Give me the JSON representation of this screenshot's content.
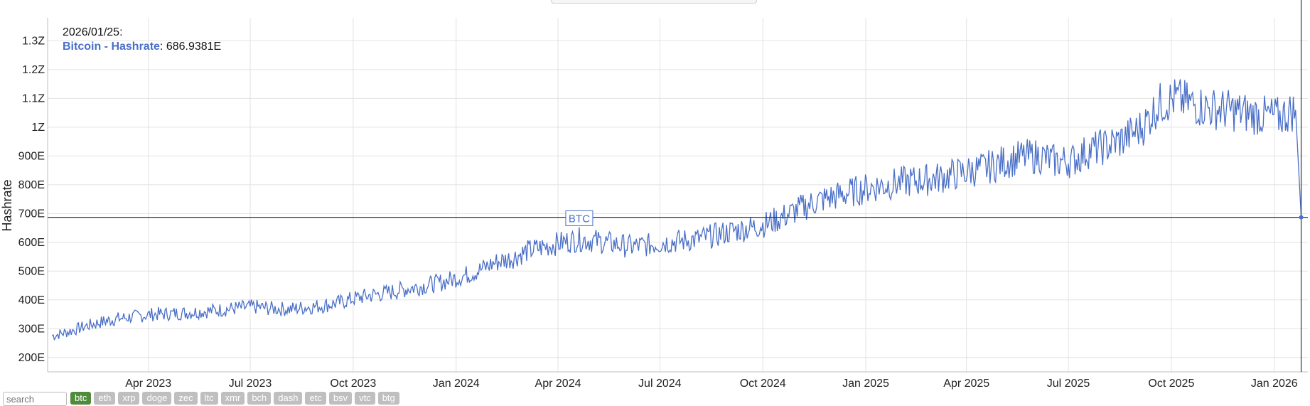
{
  "chart_data": {
    "type": "line",
    "title": "",
    "xlabel": "",
    "ylabel": "Hashrate",
    "x_range": [
      "2023-01-01",
      "2026-01-31"
    ],
    "ylim": [
      150,
      1380
    ],
    "y_unit_note": "values in E (exa); 1Z = 1000E",
    "y_ticks": [
      {
        "value": 200,
        "label": "200E"
      },
      {
        "value": 300,
        "label": "300E"
      },
      {
        "value": 400,
        "label": "400E"
      },
      {
        "value": 500,
        "label": "500E"
      },
      {
        "value": 600,
        "label": "600E"
      },
      {
        "value": 700,
        "label": "700E"
      },
      {
        "value": 800,
        "label": "800E"
      },
      {
        "value": 900,
        "label": "900E"
      },
      {
        "value": 1000,
        "label": "1Z"
      },
      {
        "value": 1100,
        "label": "1.1Z"
      },
      {
        "value": 1200,
        "label": "1.2Z"
      },
      {
        "value": 1300,
        "label": "1.3Z"
      }
    ],
    "x_ticks": [
      {
        "date": "2023-04-01",
        "label": "Apr 2023"
      },
      {
        "date": "2023-07-01",
        "label": "Jul 2023"
      },
      {
        "date": "2023-10-01",
        "label": "Oct 2023"
      },
      {
        "date": "2024-01-01",
        "label": "Jan 2024"
      },
      {
        "date": "2024-04-01",
        "label": "Apr 2024"
      },
      {
        "date": "2024-07-01",
        "label": "Jul 2024"
      },
      {
        "date": "2024-10-01",
        "label": "Oct 2024"
      },
      {
        "date": "2025-01-01",
        "label": "Jan 2025"
      },
      {
        "date": "2025-04-01",
        "label": "Apr 2025"
      },
      {
        "date": "2025-07-01",
        "label": "Jul 2025"
      },
      {
        "date": "2025-10-01",
        "label": "Oct 2025"
      },
      {
        "date": "2026-01-01",
        "label": "Jan 2026"
      }
    ],
    "grid": true,
    "legend": "none",
    "series": [
      {
        "name": "Bitcoin - Hashrate",
        "color": "#4a6fc7",
        "dates": [
          "2023-01-05",
          "2023-01-20",
          "2023-02-05",
          "2023-02-20",
          "2023-03-05",
          "2023-03-20",
          "2023-04-05",
          "2023-04-20",
          "2023-05-05",
          "2023-05-20",
          "2023-06-05",
          "2023-06-20",
          "2023-07-05",
          "2023-07-20",
          "2023-08-05",
          "2023-08-20",
          "2023-09-05",
          "2023-09-20",
          "2023-10-05",
          "2023-10-20",
          "2023-11-05",
          "2023-11-20",
          "2023-12-05",
          "2023-12-20",
          "2024-01-05",
          "2024-01-20",
          "2024-02-05",
          "2024-02-20",
          "2024-03-05",
          "2024-03-20",
          "2024-04-05",
          "2024-04-20",
          "2024-05-05",
          "2024-05-20",
          "2024-06-05",
          "2024-06-20",
          "2024-07-05",
          "2024-07-20",
          "2024-08-05",
          "2024-08-20",
          "2024-09-05",
          "2024-09-20",
          "2024-10-05",
          "2024-10-20",
          "2024-11-05",
          "2024-11-20",
          "2024-12-05",
          "2024-12-20",
          "2025-01-05",
          "2025-01-20",
          "2025-02-05",
          "2025-02-20",
          "2025-03-05",
          "2025-03-20",
          "2025-04-05",
          "2025-04-20",
          "2025-05-05",
          "2025-05-20",
          "2025-06-05",
          "2025-06-20",
          "2025-07-05",
          "2025-07-20",
          "2025-08-05",
          "2025-08-20",
          "2025-09-05",
          "2025-09-20",
          "2025-10-05",
          "2025-10-20",
          "2025-11-05",
          "2025-11-20",
          "2025-12-05",
          "2025-12-20",
          "2026-01-05",
          "2026-01-20",
          "2026-01-25"
        ],
        "values": [
          275,
          290,
          310,
          325,
          335,
          342,
          350,
          352,
          355,
          360,
          365,
          372,
          376,
          370,
          368,
          374,
          380,
          392,
          408,
          418,
          428,
          440,
          450,
          462,
          480,
          500,
          530,
          545,
          570,
          585,
          600,
          610,
          605,
          595,
          585,
          590,
          600,
          605,
          612,
          625,
          640,
          650,
          665,
          690,
          720,
          745,
          760,
          775,
          790,
          800,
          810,
          815,
          822,
          835,
          848,
          860,
          880,
          895,
          900,
          880,
          885,
          920,
          935,
          960,
          1000,
          1080,
          1100,
          1080,
          1065,
          1060,
          1050,
          1040,
          1035,
          1060,
          686.9381
        ]
      }
    ],
    "crosshair": {
      "date": "2026-01-25",
      "value": 686.9381
    },
    "tooltip": {
      "date": "2026/01/25:",
      "series_name": "Bitcoin - Hashrate",
      "value_text": ": 686.9381E"
    },
    "annotation": {
      "label": "BTC",
      "date": "2024-04-20",
      "value": 680
    }
  },
  "controls": {
    "search_placeholder": "search",
    "buttons": [
      {
        "label": "btc",
        "active": true
      },
      {
        "label": "eth",
        "active": false
      },
      {
        "label": "xrp",
        "active": false
      },
      {
        "label": "doge",
        "active": false
      },
      {
        "label": "zec",
        "active": false
      },
      {
        "label": "ltc",
        "active": false
      },
      {
        "label": "xmr",
        "active": false
      },
      {
        "label": "bch",
        "active": false
      },
      {
        "label": "dash",
        "active": false
      },
      {
        "label": "etc",
        "active": false
      },
      {
        "label": "bsv",
        "active": false
      },
      {
        "label": "vtc",
        "active": false
      },
      {
        "label": "btg",
        "active": false
      }
    ]
  }
}
